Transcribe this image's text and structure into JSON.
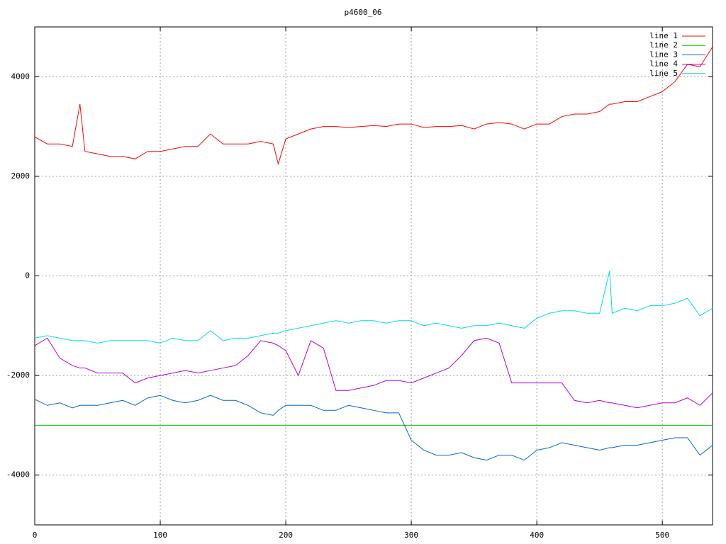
{
  "chart_data": {
    "type": "line",
    "title": "p4600_06",
    "x": [
      0,
      10,
      20,
      30,
      36,
      40,
      50,
      60,
      70,
      80,
      90,
      100,
      110,
      120,
      130,
      140,
      150,
      160,
      170,
      180,
      190,
      194,
      200,
      210,
      220,
      230,
      240,
      250,
      260,
      270,
      280,
      290,
      300,
      310,
      320,
      330,
      340,
      350,
      360,
      370,
      380,
      390,
      400,
      410,
      420,
      430,
      440,
      450,
      458,
      460,
      470,
      480,
      490,
      500,
      510,
      520,
      530,
      540
    ],
    "series": [
      {
        "name": "line 1",
        "color": "#ff0000",
        "values": [
          2790,
          2650,
          2650,
          2600,
          3450,
          2500,
          2450,
          2400,
          2400,
          2350,
          2500,
          2500,
          2550,
          2600,
          2600,
          2850,
          2650,
          2650,
          2650,
          2700,
          2650,
          2250,
          2750,
          2850,
          2950,
          3000,
          3000,
          2980,
          3000,
          3020,
          3000,
          3050,
          3050,
          2980,
          3000,
          3000,
          3020,
          2950,
          3050,
          3080,
          3050,
          2950,
          3050,
          3050,
          3200,
          3250,
          3250,
          3300,
          3450,
          3450,
          3500,
          3500,
          3600,
          3700,
          3900,
          4250,
          4200,
          4600
        ]
      },
      {
        "name": "line 2",
        "color": "#00c000",
        "values": [
          -3000,
          -3000,
          -3000,
          -3000,
          -3000,
          -3000,
          -3000,
          -3000,
          -3000,
          -3000,
          -3000,
          -3000,
          -3000,
          -3000,
          -3000,
          -3000,
          -3000,
          -3000,
          -3000,
          -3000,
          -3000,
          -3000,
          -3000,
          -3000,
          -3000,
          -3000,
          -3000,
          -3000,
          -3000,
          -3000,
          -3000,
          -3000,
          -3000,
          -3000,
          -3000,
          -3000,
          -3000,
          -3000,
          -3000,
          -3000,
          -3000,
          -3000,
          -3000,
          -3000,
          -3000,
          -3000,
          -3000,
          -3000,
          -3000,
          -3000,
          -3000,
          -3000,
          -3000,
          -3000,
          -3000,
          -3000,
          -3000,
          -3000
        ]
      },
      {
        "name": "line 3",
        "color": "#0066cc",
        "values": [
          -2480,
          -2600,
          -2550,
          -2650,
          -2600,
          -2600,
          -2600,
          -2550,
          -2500,
          -2600,
          -2450,
          -2400,
          -2500,
          -2550,
          -2500,
          -2400,
          -2500,
          -2500,
          -2600,
          -2750,
          -2800,
          -2700,
          -2600,
          -2600,
          -2600,
          -2700,
          -2700,
          -2600,
          -2650,
          -2700,
          -2750,
          -2750,
          -3300,
          -3500,
          -3600,
          -3600,
          -3550,
          -3650,
          -3700,
          -3600,
          -3600,
          -3700,
          -3500,
          -3450,
          -3350,
          -3400,
          -3450,
          -3500,
          -3450,
          -3450,
          -3400,
          -3400,
          -3350,
          -3300,
          -3250,
          -3250,
          -3600,
          -3400
        ]
      },
      {
        "name": "line 4",
        "color": "#b000e0",
        "values": [
          -1400,
          -1250,
          -1650,
          -1800,
          -1850,
          -1850,
          -1950,
          -1950,
          -1950,
          -2150,
          -2050,
          -2000,
          -1950,
          -1900,
          -1950,
          -1900,
          -1850,
          -1800,
          -1600,
          -1300,
          -1350,
          -1400,
          -1500,
          -2000,
          -1300,
          -1450,
          -2300,
          -2300,
          -2250,
          -2200,
          -2100,
          -2100,
          -2150,
          -2050,
          -1950,
          -1850,
          -1600,
          -1300,
          -1250,
          -1350,
          -2150,
          -2150,
          -2150,
          -2150,
          -2150,
          -2500,
          -2550,
          -2500,
          -2550,
          -2550,
          -2600,
          -2650,
          -2600,
          -2550,
          -2550,
          -2450,
          -2600,
          -2350
        ]
      },
      {
        "name": "line 5",
        "color": "#00dcdc",
        "values": [
          -1250,
          -1200,
          -1250,
          -1300,
          -1300,
          -1300,
          -1350,
          -1300,
          -1300,
          -1300,
          -1300,
          -1350,
          -1250,
          -1300,
          -1300,
          -1100,
          -1300,
          -1250,
          -1250,
          -1200,
          -1150,
          -1150,
          -1100,
          -1050,
          -1000,
          -950,
          -900,
          -950,
          -900,
          -900,
          -950,
          -900,
          -900,
          -1000,
          -950,
          -1000,
          -1050,
          -1000,
          -1000,
          -950,
          -1000,
          -1050,
          -850,
          -750,
          -700,
          -700,
          -750,
          -750,
          100,
          -750,
          -650,
          -700,
          -600,
          -600,
          -550,
          -450,
          -800,
          -650
        ]
      }
    ],
    "xlim": [
      0,
      540
    ],
    "xticks": [
      0,
      100,
      200,
      300,
      400,
      500
    ],
    "ylim": [
      -5000,
      5000
    ],
    "yticks": [
      -4000,
      -2000,
      0,
      2000,
      4000
    ],
    "grid": true,
    "legend": "top-right"
  }
}
